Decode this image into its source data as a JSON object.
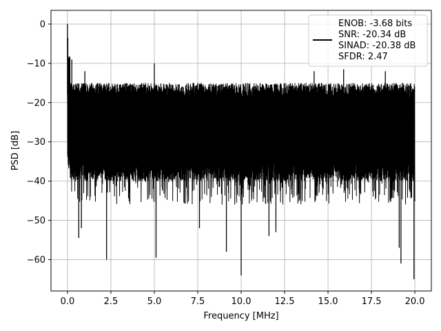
{
  "chart_data": {
    "type": "line",
    "xlabel": "Frequency [MHz]",
    "ylabel": "PSD [dB]",
    "xlim": [
      -0.95,
      20.95
    ],
    "ylim": [
      -68,
      3.5
    ],
    "xticks": [
      0.0,
      2.5,
      5.0,
      7.5,
      10.0,
      12.5,
      15.0,
      17.5,
      20.0
    ],
    "xtick_labels": [
      "0.0",
      "2.5",
      "5.0",
      "7.5",
      "10.0",
      "12.5",
      "15.0",
      "17.5",
      "20.0"
    ],
    "yticks": [
      0,
      -10,
      -20,
      -30,
      -40,
      -50,
      -60
    ],
    "ytick_labels": [
      "0",
      "−10",
      "−20",
      "−30",
      "−40",
      "−50",
      "−60"
    ],
    "grid": true,
    "legend": {
      "placement": "top-right",
      "entries": [
        "ENOB: -3.68 bits",
        "SNR: -20.34 dB",
        "SINAD: -20.38 dB",
        "SFDR: 2.47"
      ]
    },
    "series": [
      {
        "color": "#000000",
        "noise_floor_range_db": [
          -40,
          -15
        ],
        "peaks": [
          {
            "x": 0.0,
            "y": 0
          },
          {
            "x": 0.02,
            "y": -3.5
          },
          {
            "x": 0.08,
            "y": -10
          },
          {
            "x": 0.25,
            "y": -9
          },
          {
            "x": 1.0,
            "y": -12
          },
          {
            "x": 5.0,
            "y": -10
          },
          {
            "x": 14.2,
            "y": -12
          },
          {
            "x": 15.9,
            "y": -11.5
          },
          {
            "x": 18.3,
            "y": -12
          }
        ],
        "dips": [
          {
            "x": 0.65,
            "y": -54.5
          },
          {
            "x": 0.8,
            "y": -52
          },
          {
            "x": 2.25,
            "y": -60
          },
          {
            "x": 5.1,
            "y": -59.5
          },
          {
            "x": 7.6,
            "y": -52
          },
          {
            "x": 9.15,
            "y": -58
          },
          {
            "x": 10.0,
            "y": -64
          },
          {
            "x": 11.6,
            "y": -54
          },
          {
            "x": 12.0,
            "y": -53
          },
          {
            "x": 19.1,
            "y": -57
          },
          {
            "x": 19.2,
            "y": -61
          },
          {
            "x": 19.95,
            "y": -65
          }
        ]
      }
    ]
  }
}
